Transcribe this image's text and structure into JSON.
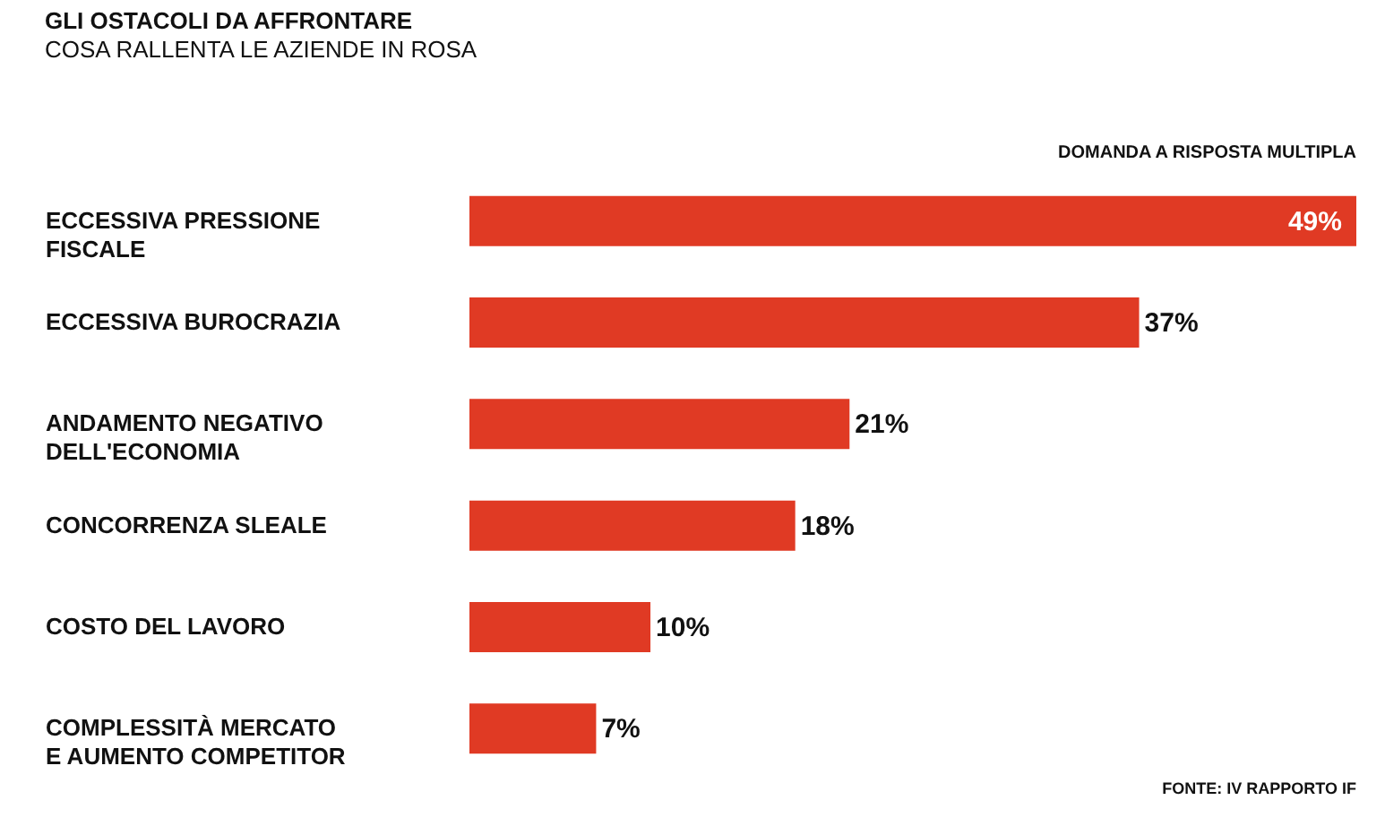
{
  "chart_data": {
    "type": "bar",
    "orientation": "horizontal",
    "title": "GLI OSTACOLI DA AFFRONTARE",
    "subtitle": "COSA RALLENTA LE AZIENDE IN ROSA",
    "categories": [
      "ECCESSIVA PRESSIONE FISCALE",
      "ECCESSIVA BUROCRAZIA",
      "ANDAMENTO NEGATIVO DELL'ECONOMIA",
      "CONCORRENZA SLEALE",
      "COSTO DEL LAVORO",
      "COMPLESSITÀ MERCATO E AUMENTO COMPETITOR"
    ],
    "values": [
      49,
      37,
      21,
      18,
      10,
      7
    ],
    "value_labels": [
      "49%",
      "37%",
      "21%",
      "18%",
      "10%",
      "7%"
    ],
    "color": "#e03a24",
    "annotations": [
      "DOMANDA A RISPOSTA MULTIPLA",
      "FONTE: IV RAPPORTO IF"
    ],
    "grid": false
  }
}
